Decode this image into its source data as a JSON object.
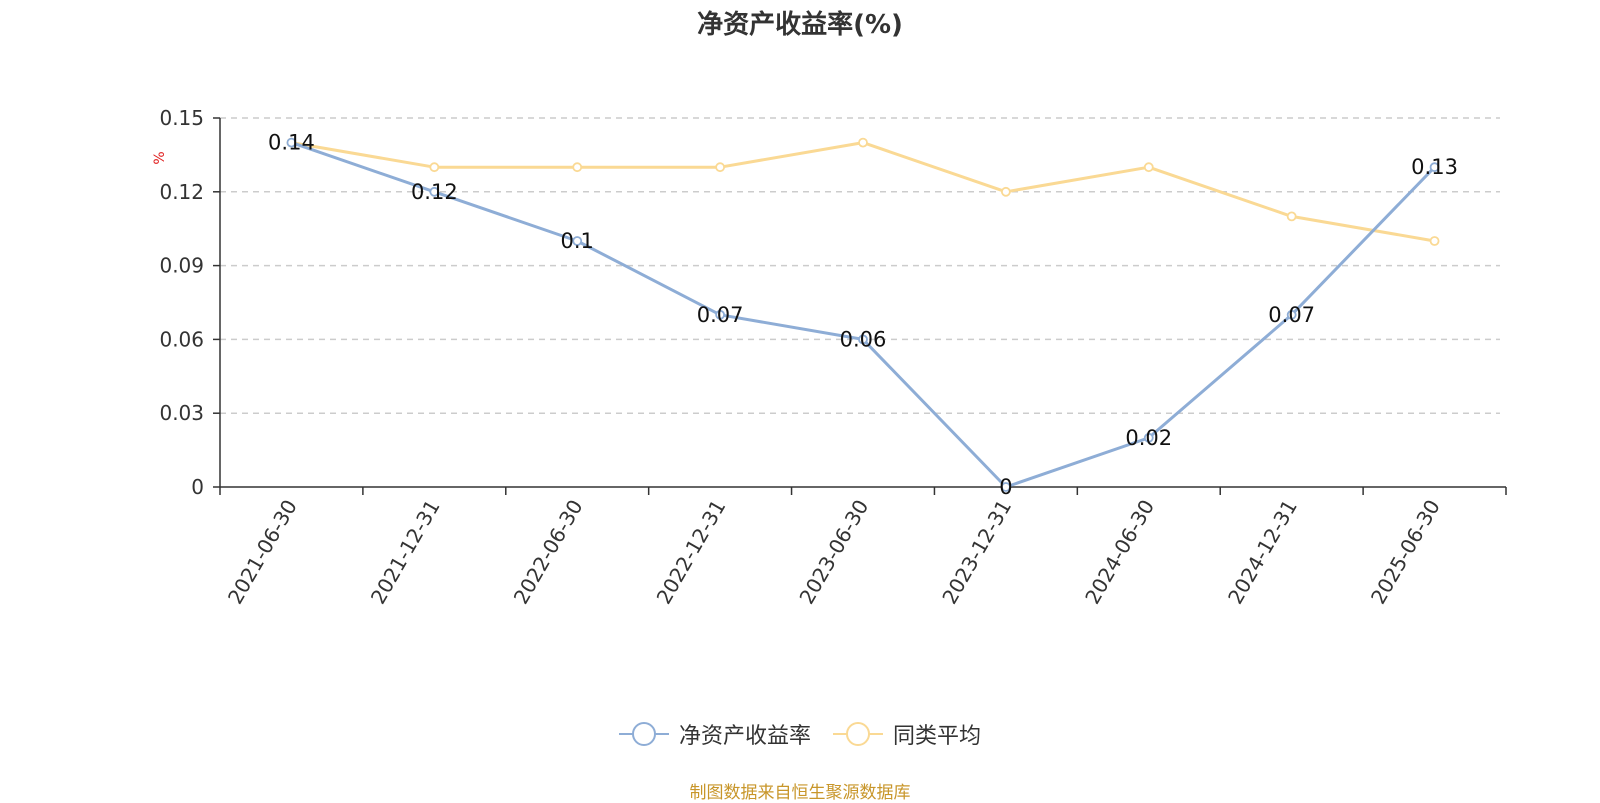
{
  "chart_data": {
    "type": "line",
    "title": "净资产收益率(%)",
    "ylabel": "%",
    "categories": [
      "2021-06-30",
      "2021-12-31",
      "2022-06-30",
      "2022-12-31",
      "2023-06-30",
      "2023-12-31",
      "2024-06-30",
      "2024-12-31",
      "2025-06-30"
    ],
    "y_ticks": [
      "0",
      "0.03",
      "0.06",
      "0.09",
      "0.12",
      "0.15"
    ],
    "ylim": [
      0,
      0.15
    ],
    "grid": true,
    "legend_position": "bottom",
    "series": [
      {
        "name": "净资产收益率",
        "color": "#8eadd6",
        "values": [
          0.14,
          0.12,
          0.1,
          0.07,
          0.06,
          0,
          0.02,
          0.07,
          0.13
        ],
        "labels": [
          "0.14",
          "0.12",
          "0.1",
          "0.07",
          "0.06",
          "0",
          "0.02",
          "0.07",
          "0.13"
        ]
      },
      {
        "name": "同类平均",
        "color": "#fad994",
        "values": [
          0.14,
          0.13,
          0.13,
          0.13,
          0.14,
          0.12,
          0.13,
          0.11,
          0.1
        ]
      }
    ],
    "source": "制图数据来自恒生聚源数据库",
    "source_color": "#c8962a",
    "unit_color": "#e02020"
  }
}
